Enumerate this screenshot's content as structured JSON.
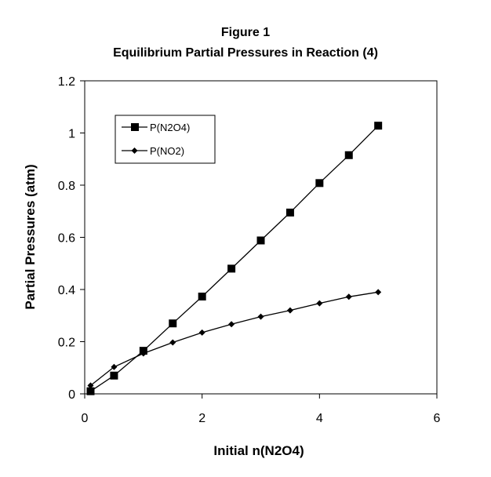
{
  "chart_data": {
    "type": "line",
    "title": "Figure 1",
    "subtitle": "Equilibrium Partial Pressures in Reaction (4)",
    "xlabel": "Initial n(N2O4)",
    "ylabel": "Partial Pressures (atm)",
    "xlim": [
      0,
      6
    ],
    "ylim": [
      0,
      1.2
    ],
    "xticks": [
      0,
      2,
      4,
      6
    ],
    "xtick_labels": [
      "0",
      "2",
      "4",
      "6"
    ],
    "yticks": [
      0,
      0.2,
      0.4,
      0.6,
      0.8,
      1,
      1.2
    ],
    "ytick_labels": [
      "0",
      "0.2",
      "0.4",
      "0.6",
      "0.8",
      "1",
      "1.2"
    ],
    "grid": false,
    "legend_position": "upper-left",
    "series": [
      {
        "name": "P(N2O4)",
        "marker": "square",
        "color": "#000000",
        "x": [
          0.1,
          0.5,
          1,
          1.5,
          2,
          2.5,
          3,
          3.5,
          4,
          4.5,
          5
        ],
        "y": [
          0.01,
          0.07,
          0.165,
          0.27,
          0.373,
          0.48,
          0.588,
          0.695,
          0.808,
          0.915,
          1.028
        ]
      },
      {
        "name": "P(NO2)",
        "marker": "diamond",
        "color": "#000000",
        "x": [
          0.1,
          0.5,
          1,
          1.5,
          2,
          2.5,
          3,
          3.5,
          4,
          4.5,
          5
        ],
        "y": [
          0.032,
          0.103,
          0.155,
          0.197,
          0.235,
          0.267,
          0.296,
          0.32,
          0.347,
          0.372,
          0.39
        ]
      }
    ]
  }
}
